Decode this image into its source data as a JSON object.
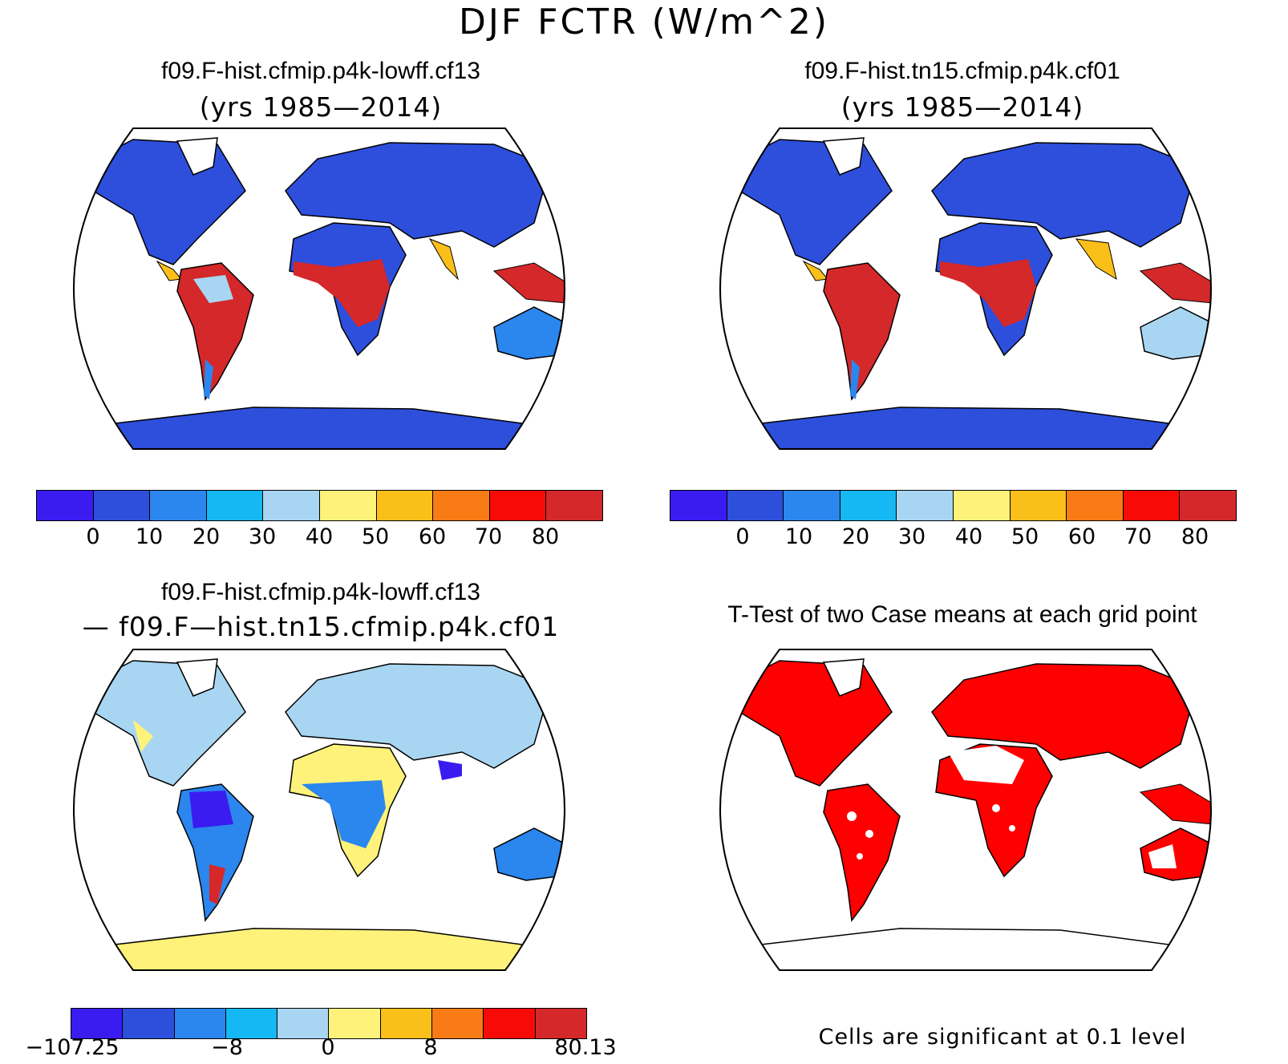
{
  "title": "DJF FCTR (W/m^2)",
  "panels": [
    {
      "title": "f09.F-hist.cfmip.p4k-lowff.cf13",
      "subtitle": "(yrs 1985—2014)"
    },
    {
      "title": "f09.F-hist.tn15.cfmip.p4k.cf01",
      "subtitle": "(yrs 1985—2014)"
    },
    {
      "title": "f09.F-hist.cfmip.p4k-lowff.cf13",
      "subtitle": "— f09.F—hist.tn15.cfmip.p4k.cf01"
    },
    {
      "title": "T-Test of two Case means at each grid point",
      "subtitle": ""
    }
  ],
  "colorbars": {
    "abs": {
      "colors": [
        "#3a1cf0",
        "#2d4fdc",
        "#2b86ee",
        "#15b8f2",
        "#a8d6f2",
        "#fff27a",
        "#fbbf1a",
        "#f97b16",
        "#f80b06",
        "#d4282a"
      ],
      "labels": [
        "0",
        "10",
        "20",
        "30",
        "40",
        "50",
        "60",
        "70",
        "80"
      ]
    },
    "diff": {
      "colors": [
        "#3a1cf0",
        "#2d4fdc",
        "#2b86ee",
        "#15b8f2",
        "#a8d6f2",
        "#fff27a",
        "#fbbf1a",
        "#f97b16",
        "#f80b06",
        "#d4282a"
      ],
      "labels": [
        "−107.25",
        "−8",
        "0",
        "8",
        "80.13"
      ]
    }
  },
  "note": "Cells are significant at 0.1 level",
  "colors": {
    "land_dominant": "#2d4fdc",
    "significant": "#ff0000",
    "outline": "#000000"
  }
}
